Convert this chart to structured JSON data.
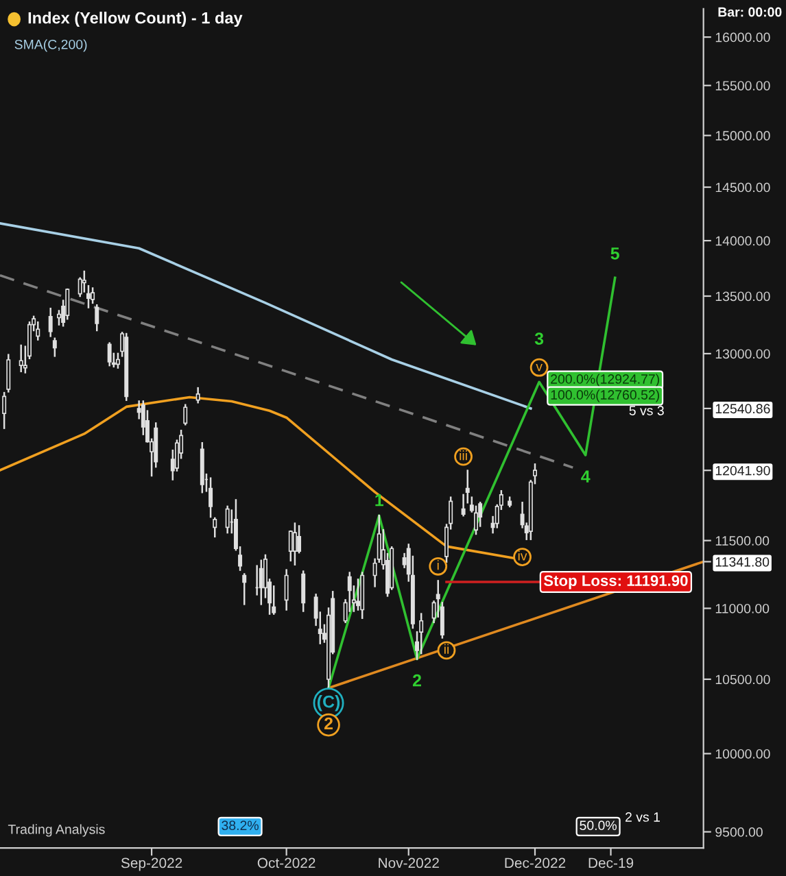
{
  "chart_data": {
    "type": "candlestick",
    "title": "Index (Yellow Count) - 1 day",
    "color": "#e0e0e0",
    "x": [
      "2022-07-28",
      "2022-07-29",
      "2022-08-01",
      "2022-08-02",
      "2022-08-03",
      "2022-08-04",
      "2022-08-05",
      "2022-08-08",
      "2022-08-09",
      "2022-08-10",
      "2022-08-11",
      "2022-08-12",
      "2022-08-15",
      "2022-08-16",
      "2022-08-17",
      "2022-08-18",
      "2022-08-19",
      "2022-08-22",
      "2022-08-23",
      "2022-08-24",
      "2022-08-25",
      "2022-08-26",
      "2022-08-29",
      "2022-08-30",
      "2022-08-31",
      "2022-09-01",
      "2022-09-02",
      "2022-09-06",
      "2022-09-07",
      "2022-09-08",
      "2022-09-09",
      "2022-09-12",
      "2022-09-13",
      "2022-09-14",
      "2022-09-15",
      "2022-09-16",
      "2022-09-19",
      "2022-09-20",
      "2022-09-21",
      "2022-09-22",
      "2022-09-23",
      "2022-09-26",
      "2022-09-27",
      "2022-09-28",
      "2022-09-29",
      "2022-09-30",
      "2022-10-03",
      "2022-10-04",
      "2022-10-05",
      "2022-10-06",
      "2022-10-07",
      "2022-10-10",
      "2022-10-11",
      "2022-10-12",
      "2022-10-13",
      "2022-10-14",
      "2022-10-17",
      "2022-10-18",
      "2022-10-19",
      "2022-10-20",
      "2022-10-21",
      "2022-10-24",
      "2022-10-25",
      "2022-10-26",
      "2022-10-27",
      "2022-10-28",
      "2022-10-31",
      "2022-11-01",
      "2022-11-02",
      "2022-11-03",
      "2022-11-04",
      "2022-11-07",
      "2022-11-08",
      "2022-11-09",
      "2022-11-10",
      "2022-11-11",
      "2022-11-14",
      "2022-11-15",
      "2022-11-16",
      "2022-11-17",
      "2022-11-18",
      "2022-11-21",
      "2022-11-22",
      "2022-11-23",
      "2022-11-25",
      "2022-11-28",
      "2022-11-29",
      "2022-11-30",
      "2022-12-01"
    ],
    "ohlc": [
      [
        12500,
        12670,
        12380,
        12640
      ],
      [
        12700,
        12990,
        12680,
        12947
      ],
      [
        12900,
        13070,
        12850,
        12940
      ],
      [
        12880,
        13060,
        12840,
        12900
      ],
      [
        12980,
        13270,
        12960,
        13250
      ],
      [
        13250,
        13320,
        13200,
        13300
      ],
      [
        13150,
        13270,
        13120,
        13210
      ],
      [
        13320,
        13390,
        13150,
        13190
      ],
      [
        13110,
        13130,
        12980,
        13050
      ],
      [
        13310,
        13370,
        13250,
        13340
      ],
      [
        13410,
        13460,
        13240,
        13270
      ],
      [
        13330,
        13560,
        13300,
        13560
      ],
      [
        13520,
        13660,
        13500,
        13650
      ],
      [
        13620,
        13720,
        13540,
        13640
      ],
      [
        13520,
        13590,
        13400,
        13480
      ],
      [
        13470,
        13570,
        13440,
        13530
      ],
      [
        13400,
        13420,
        13200,
        13260
      ],
      [
        13080,
        13090,
        12900,
        12930
      ],
      [
        12910,
        13000,
        12890,
        12920
      ],
      [
        12910,
        13000,
        12880,
        12950
      ],
      [
        13020,
        13180,
        12980,
        13170
      ],
      [
        13140,
        13170,
        12610,
        12640
      ],
      [
        12540,
        12600,
        12460,
        12510
      ],
      [
        12570,
        12600,
        12330,
        12390
      ],
      [
        12440,
        12520,
        12270,
        12270
      ],
      [
        12190,
        12290,
        12000,
        12270
      ],
      [
        12380,
        12420,
        12070,
        12110
      ],
      [
        12130,
        12200,
        11970,
        12040
      ],
      [
        12060,
        12280,
        12040,
        12260
      ],
      [
        12180,
        12360,
        12140,
        12320
      ],
      [
        12420,
        12570,
        12410,
        12550
      ],
      [
        12610,
        12710,
        12590,
        12660
      ],
      [
        12210,
        12260,
        11870,
        11930
      ],
      [
        11970,
        12010,
        11880,
        11970
      ],
      [
        11900,
        11980,
        11680,
        11760
      ],
      [
        11600,
        11670,
        11530,
        11660
      ],
      [
        11600,
        11760,
        11560,
        11740
      ],
      [
        11640,
        11730,
        11560,
        11640
      ],
      [
        11660,
        11810,
        11430,
        11440
      ],
      [
        11390,
        11450,
        11280,
        11310
      ],
      [
        11240,
        11250,
        11030,
        11190
      ],
      [
        11150,
        11310,
        11100,
        11150
      ],
      [
        11290,
        11350,
        11030,
        11150
      ],
      [
        11150,
        11390,
        11080,
        11360
      ],
      [
        11190,
        11210,
        10960,
        11040
      ],
      [
        11010,
        11160,
        10960,
        10970
      ],
      [
        11060,
        11280,
        10990,
        11240
      ],
      [
        11420,
        11570,
        11350,
        11570
      ],
      [
        11420,
        11630,
        11320,
        11560
      ],
      [
        11530,
        11610,
        11410,
        11420
      ],
      [
        11250,
        11270,
        10980,
        11040
      ],
      [
        11080,
        11100,
        10880,
        10930
      ],
      [
        10850,
        10970,
        10750,
        10820
      ],
      [
        10820,
        10880,
        10760,
        10780
      ],
      [
        10500,
        11000,
        10440,
        10950
      ],
      [
        11070,
        11120,
        10680,
        10690
      ],
      [
        10910,
        11060,
        10900,
        11040
      ],
      [
        11230,
        11260,
        10980,
        11130
      ],
      [
        11040,
        11160,
        10980,
        11060
      ],
      [
        11050,
        11210,
        10990,
        11020
      ],
      [
        10990,
        11260,
        10930,
        11240
      ],
      [
        11240,
        11360,
        11160,
        11330
      ],
      [
        11360,
        11690,
        11340,
        11550
      ],
      [
        11320,
        11580,
        11290,
        11430
      ],
      [
        11350,
        11400,
        11090,
        11110
      ],
      [
        11150,
        11450,
        11140,
        11440
      ],
      [
        11370,
        11400,
        11300,
        11320
      ],
      [
        11440,
        11470,
        11200,
        11250
      ],
      [
        11240,
        11380,
        10860,
        10890
      ],
      [
        10760,
        10830,
        10640,
        10700
      ],
      [
        10830,
        10960,
        10680,
        10910
      ],
      [
        10930,
        11050,
        10900,
        11040
      ],
      [
        11100,
        11200,
        10940,
        11070
      ],
      [
        11010,
        11040,
        10790,
        10810
      ],
      [
        11380,
        11620,
        11340,
        11600
      ],
      [
        11630,
        11830,
        11590,
        11800
      ],
      [
        11740,
        11850,
        11690,
        11700
      ],
      [
        11900,
        12040,
        11790,
        11870
      ],
      [
        11770,
        11830,
        11720,
        11730
      ],
      [
        11580,
        11760,
        11550,
        11710
      ],
      [
        11780,
        11790,
        11610,
        11680
      ],
      [
        11630,
        11680,
        11560,
        11600
      ],
      [
        11630,
        11770,
        11600,
        11760
      ],
      [
        11770,
        11880,
        11740,
        11850
      ],
      [
        11800,
        11830,
        11760,
        11770
      ],
      [
        11700,
        11790,
        11600,
        11620
      ],
      [
        11610,
        11630,
        11510,
        11560
      ],
      [
        11570,
        11960,
        11510,
        11950
      ],
      [
        12000,
        12090,
        11940,
        12041.9
      ]
    ],
    "series": [
      {
        "type": "line",
        "name": "SMA(C,200)",
        "color": "#a8d0e6",
        "x": [
          "2022-07-27",
          "2022-08-29",
          "2022-09-28",
          "2022-10-28",
          "2022-11-30"
        ],
        "values": [
          14160,
          13930,
          13440,
          12950,
          12540.86
        ]
      },
      {
        "type": "line",
        "color": "#f0a020",
        "x": [
          "2022-07-27",
          "2022-08-16",
          "2022-08-26",
          "2022-09-10",
          "2022-09-20",
          "2022-09-29",
          "2022-10-03",
          "2022-10-24",
          "2022-11-10",
          "2022-11-28"
        ],
        "values": [
          12043,
          12334,
          12555,
          12634,
          12600,
          12522,
          12466,
          11872,
          11456,
          11357
        ]
      },
      {
        "type": "line",
        "color": "#808080",
        "line_style": "dashed",
        "x": [
          "2022-07-27",
          "2022-12-10"
        ],
        "values": [
          13685,
          12064
        ]
      },
      {
        "type": "line",
        "color": "#e08a20",
        "x": [
          "2022-10-13",
          "2023-01-10"
        ],
        "values": [
          10440,
          11341.8
        ]
      },
      {
        "type": "line",
        "color": "#30c030",
        "x": [
          "2022-10-13",
          "2022-10-25",
          "2022-11-03",
          "2022-12-02",
          "2022-12-13",
          "2022-12-20"
        ],
        "values": [
          10440,
          11690,
          10640,
          12760.52,
          12163,
          13663
        ]
      },
      {
        "type": "line",
        "color": "#d02020",
        "x": [
          "2022-11-10",
          "2022-12-02"
        ],
        "values": [
          11191.9,
          11191.9
        ]
      }
    ],
    "log": "y",
    "ylim": [
      9400,
      16300
    ],
    "yticks": [
      {
        "value": 9500,
        "label": "9500.00"
      },
      {
        "value": 10000,
        "label": "10000.00"
      },
      {
        "value": 10500,
        "label": "10500.00"
      },
      {
        "value": 11000,
        "label": "11000.00"
      },
      {
        "value": 11341.8,
        "label": "11341.80"
      },
      {
        "value": 11500,
        "label": "11500.00"
      },
      {
        "value": 12041.9,
        "label": "12041.90"
      },
      {
        "value": 12540.86,
        "label": "12540.86"
      },
      {
        "value": 13000,
        "label": "13000.00"
      },
      {
        "value": 13500,
        "label": "13500.00"
      },
      {
        "value": 14000,
        "label": "14000.00"
      },
      {
        "value": 14500,
        "label": "14500.00"
      },
      {
        "value": 15000,
        "label": "15000.00"
      },
      {
        "value": 15500,
        "label": "15500.00"
      },
      {
        "value": 16000,
        "label": "16000.00"
      }
    ],
    "xlim": [
      "2022-07-27",
      "2023-01-10"
    ],
    "xticks": [
      {
        "value": "2022-09-01",
        "label": "Sep-2022"
      },
      {
        "value": "2022-10-03",
        "label": "Oct-2022"
      },
      {
        "value": "2022-11-01",
        "label": "Nov-2022"
      },
      {
        "value": "2022-12-01",
        "label": "Dec-2022"
      },
      {
        "value": "2022-12-19",
        "label": "Dec-19"
      }
    ],
    "annotations": [
      {
        "text": "(C)",
        "x": "2022-10-13",
        "y": 10337
      },
      {
        "text": "2",
        "x": "2022-10-13",
        "y": 10190
      },
      {
        "text": "1",
        "x": "2022-10-25",
        "y": 11798
      },
      {
        "text": "2",
        "x": "2022-11-03",
        "y": 10640
      },
      {
        "text": "3",
        "x": "2022-12-02",
        "y": 12760.52
      },
      {
        "text": "4",
        "x": "2022-12-13",
        "y": 12163
      },
      {
        "text": "5",
        "x": "2022-12-20",
        "y": 13663
      },
      {
        "text": "i",
        "x": "2022-11-08",
        "y": 11307
      },
      {
        "text": "ii",
        "x": "2022-11-10",
        "y": 10701
      },
      {
        "text": "iii",
        "x": "2022-11-14",
        "y": 12151
      },
      {
        "text": "iv",
        "x": "2022-11-28",
        "y": 11377
      },
      {
        "text": "v",
        "x": "2022-12-02",
        "y": 12882
      },
      "200.0%(12924.77)",
      "100.0%(12760.52)",
      "5 vs 3",
      {
        "text": "Stop Loss: 11191.90",
        "x": "2022-12-03",
        "y": 11191.9
      },
      {
        "text": "38.2%",
        "x": "2022-09-22",
        "y": 9533
      },
      {
        "text": "50.0%",
        "x": "2022-12-16",
        "y": 9533
      },
      "2 vs 1",
      "Bar: 00:00",
      "Trading Analysis"
    ]
  }
}
